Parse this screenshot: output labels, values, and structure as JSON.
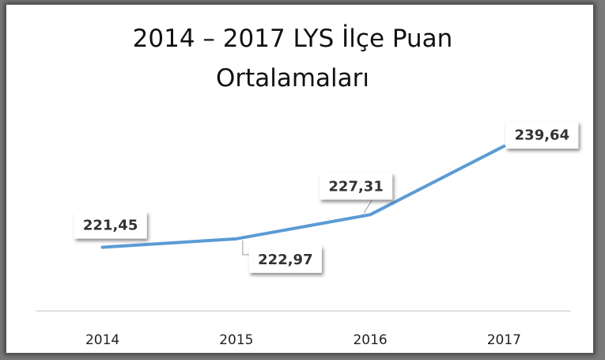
{
  "chart_data": {
    "type": "line",
    "title": "2014 – 2017 LYS İlçe Puan Ortalamaları",
    "categories": [
      "2014",
      "2015",
      "2016",
      "2017"
    ],
    "values": [
      221.45,
      222.97,
      227.31,
      239.64
    ],
    "value_labels": [
      "221,45",
      "222,97",
      "227,31",
      "239,64"
    ],
    "color": "#5b9bd5",
    "ylim": [
      210,
      245
    ]
  }
}
